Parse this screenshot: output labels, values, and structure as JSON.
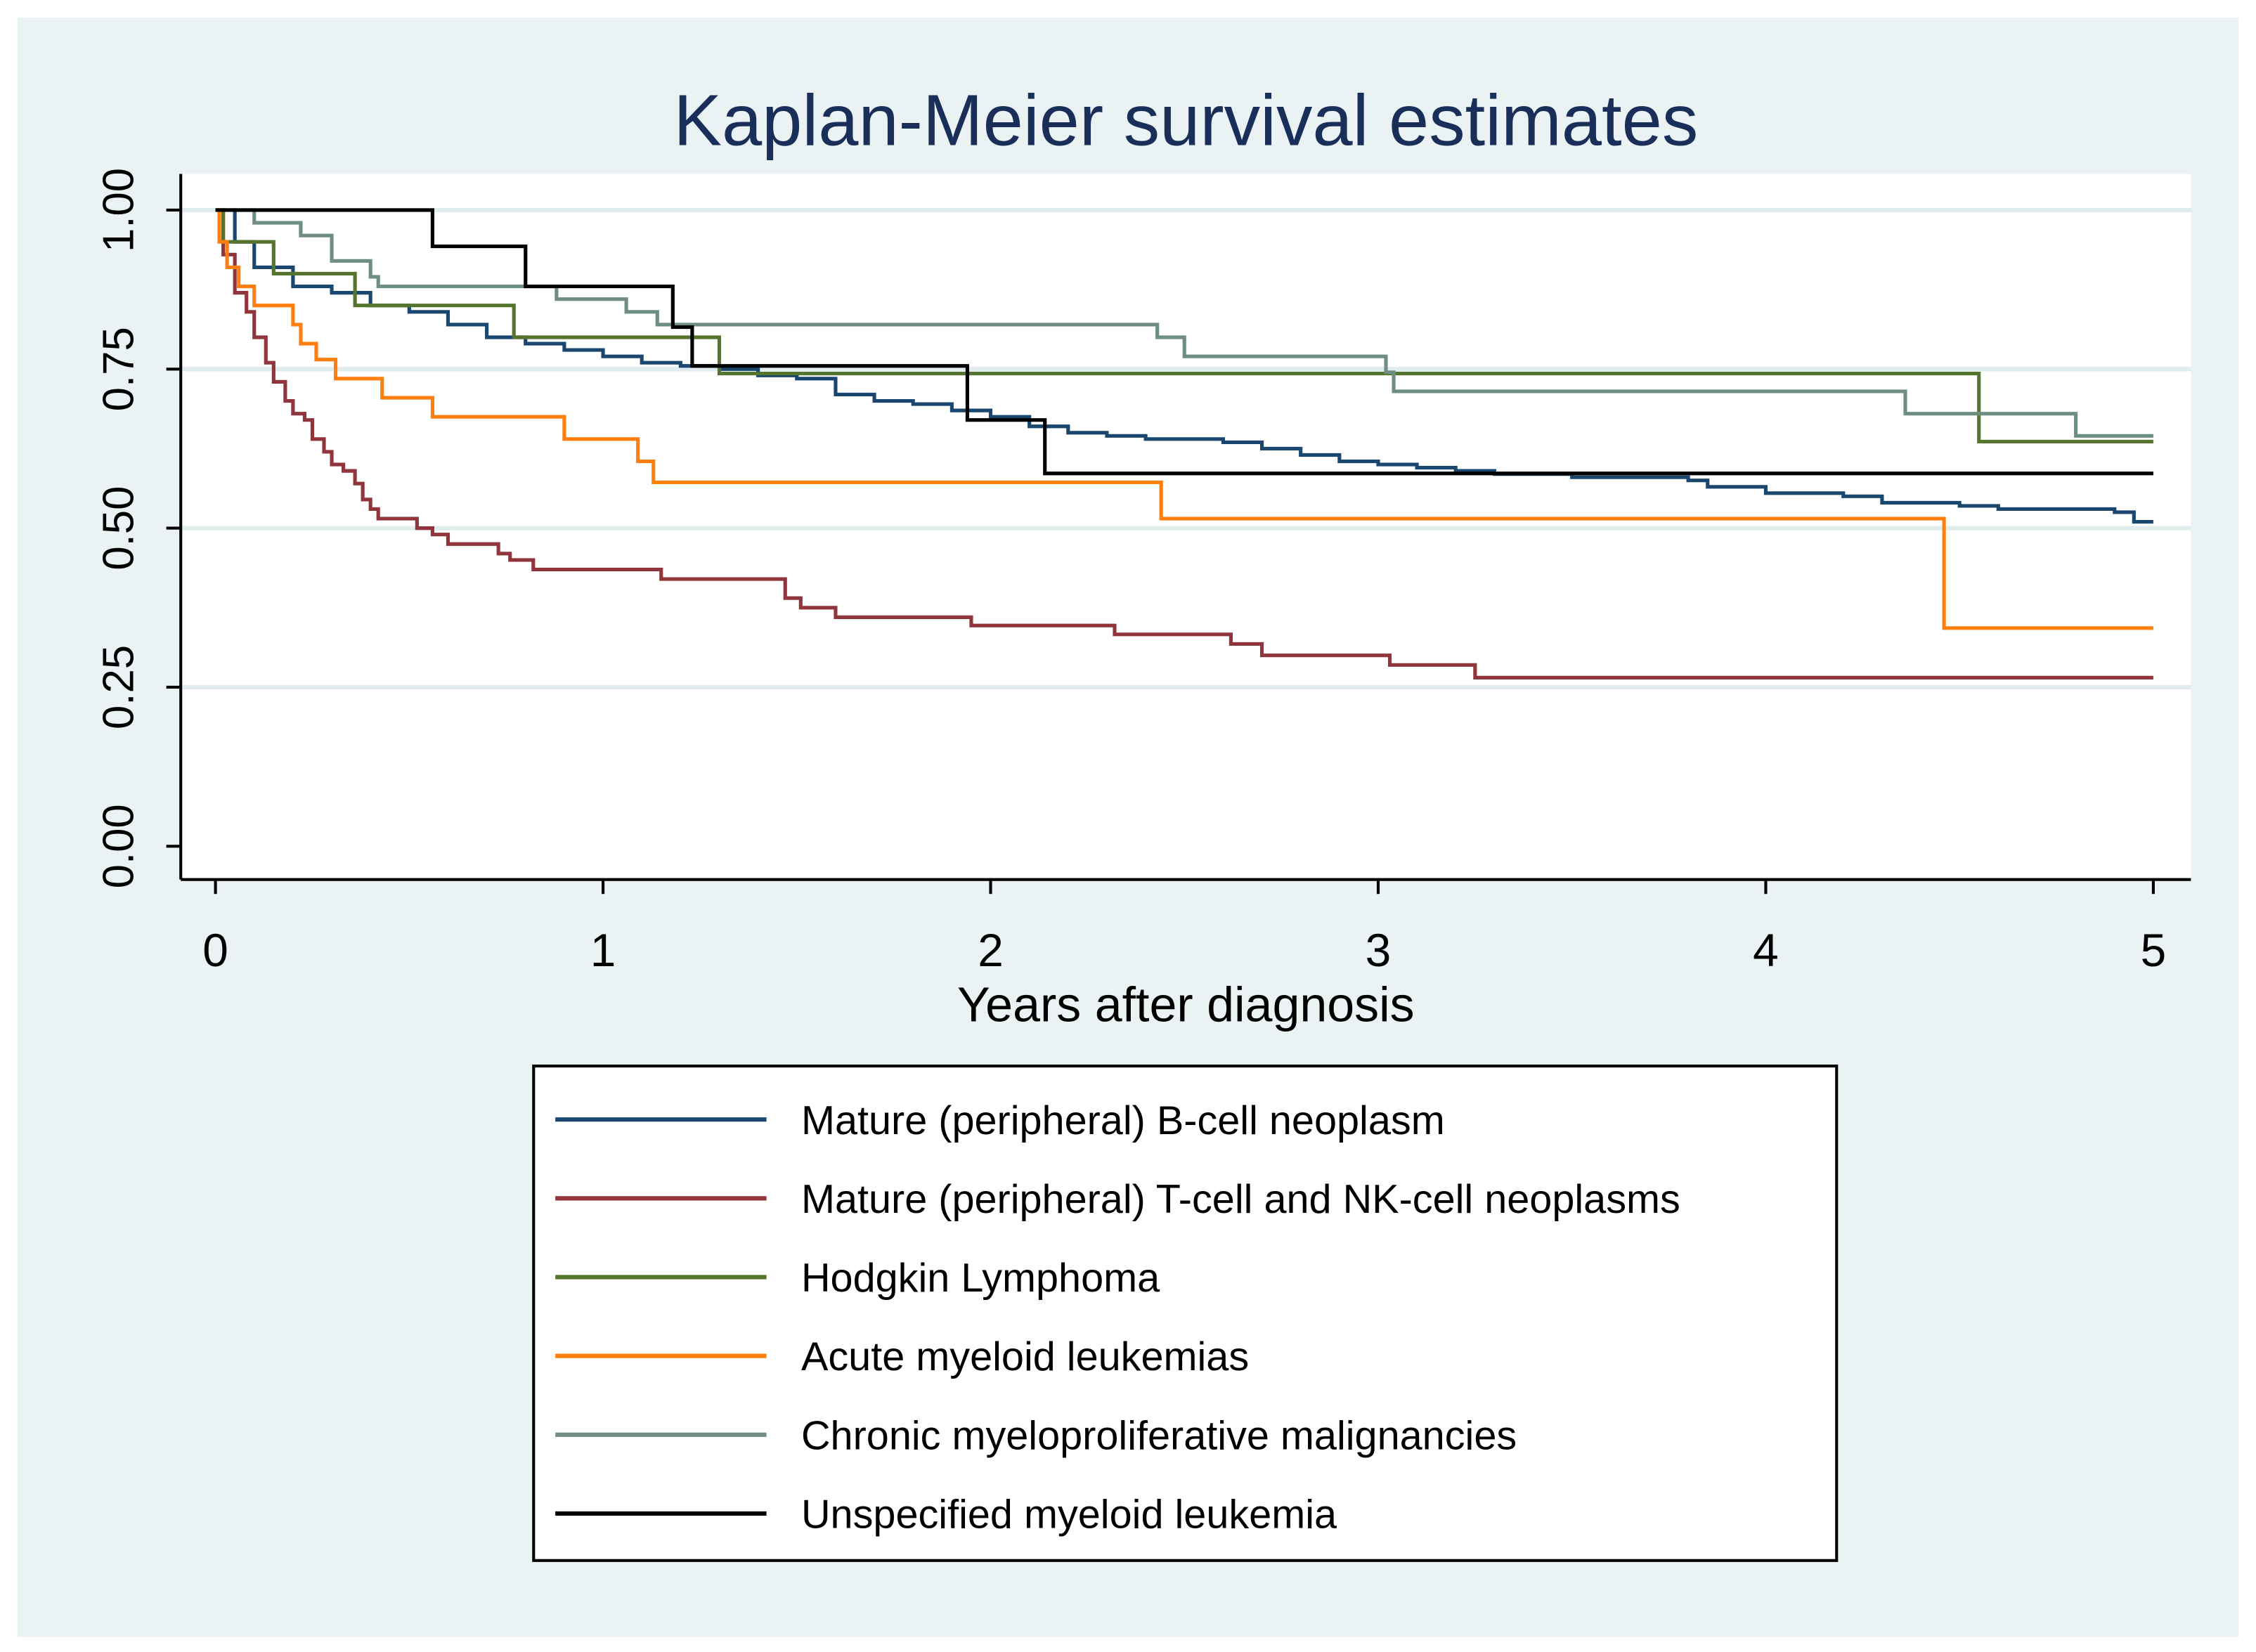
{
  "chart_data": {
    "type": "line",
    "step": true,
    "title": "Kaplan-Meier survival estimates",
    "xlabel": "Years after diagnosis",
    "ylabel": "",
    "xlim": [
      0,
      5
    ],
    "ylim": [
      0,
      1
    ],
    "xticks": [
      "0",
      "1",
      "2",
      "3",
      "4",
      "5"
    ],
    "xtick_values": [
      0,
      1,
      2,
      3,
      4,
      5
    ],
    "yticks": [
      "0.00",
      "0.25",
      "0.50",
      "0.75",
      "1.00"
    ],
    "ytick_values": [
      0,
      0.25,
      0.5,
      0.75,
      1.0
    ],
    "grid": "horizontal",
    "legend_position": "bottom",
    "series": [
      {
        "name": "Mature (peripheral) B-cell neoplasm",
        "color": "#1a476f",
        "x": [
          0,
          0.05,
          0.1,
          0.2,
          0.3,
          0.4,
          0.5,
          0.6,
          0.7,
          0.8,
          0.9,
          1.0,
          1.1,
          1.2,
          1.3,
          1.4,
          1.5,
          1.6,
          1.7,
          1.8,
          1.9,
          2.0,
          2.1,
          2.2,
          2.3,
          2.4,
          2.6,
          2.7,
          2.8,
          2.9,
          3.0,
          3.1,
          3.2,
          3.3,
          3.5,
          3.8,
          3.85,
          4.0,
          4.2,
          4.3,
          4.5,
          4.6,
          4.9,
          4.95,
          5.0
        ],
        "y": [
          1,
          0.95,
          0.91,
          0.88,
          0.87,
          0.85,
          0.84,
          0.82,
          0.8,
          0.79,
          0.78,
          0.77,
          0.76,
          0.755,
          0.75,
          0.74,
          0.735,
          0.71,
          0.7,
          0.695,
          0.685,
          0.675,
          0.66,
          0.65,
          0.645,
          0.64,
          0.635,
          0.625,
          0.615,
          0.605,
          0.6,
          0.595,
          0.59,
          0.585,
          0.58,
          0.575,
          0.565,
          0.555,
          0.55,
          0.54,
          0.535,
          0.53,
          0.525,
          0.51,
          0.51
        ]
      },
      {
        "name": "Mature (peripheral) T-cell and NK-cell neoplasms",
        "color": "#90353b",
        "x": [
          0,
          0.02,
          0.05,
          0.08,
          0.1,
          0.13,
          0.15,
          0.18,
          0.2,
          0.23,
          0.25,
          0.28,
          0.3,
          0.33,
          0.36,
          0.38,
          0.4,
          0.42,
          0.52,
          0.56,
          0.6,
          0.73,
          0.76,
          0.82,
          1.15,
          1.47,
          1.51,
          1.6,
          1.95,
          2.32,
          2.62,
          2.7,
          3.03,
          3.25,
          5.0
        ],
        "y": [
          1,
          0.93,
          0.87,
          0.84,
          0.8,
          0.76,
          0.73,
          0.7,
          0.68,
          0.67,
          0.64,
          0.62,
          0.6,
          0.59,
          0.57,
          0.545,
          0.53,
          0.515,
          0.5,
          0.49,
          0.475,
          0.46,
          0.45,
          0.435,
          0.42,
          0.39,
          0.375,
          0.36,
          0.347,
          0.333,
          0.318,
          0.3,
          0.285,
          0.265,
          0.265
        ]
      },
      {
        "name": "Hodgkin Lymphoma",
        "color": "#55752f",
        "x": [
          0,
          0.02,
          0.15,
          0.36,
          0.77,
          1.3,
          4.55,
          5.0
        ],
        "y": [
          1,
          0.95,
          0.9,
          0.85,
          0.8,
          0.743,
          0.636,
          0.636
        ]
      },
      {
        "name": "Acute myeloid leukemias",
        "color": "#ff7f0e",
        "x": [
          0,
          0.01,
          0.03,
          0.06,
          0.1,
          0.2,
          0.22,
          0.26,
          0.31,
          0.43,
          0.56,
          0.9,
          1.09,
          1.13,
          2.44,
          4.46,
          5.0
        ],
        "y": [
          1,
          0.95,
          0.91,
          0.88,
          0.85,
          0.82,
          0.79,
          0.765,
          0.735,
          0.705,
          0.675,
          0.64,
          0.605,
          0.572,
          0.515,
          0.343,
          0.343
        ]
      },
      {
        "name": "Chronic myeloproliferative malignancies",
        "color": "#6e8e84",
        "x": [
          0,
          0.1,
          0.22,
          0.3,
          0.4,
          0.42,
          0.88,
          1.06,
          1.14,
          2.43,
          2.5,
          3.02,
          3.04,
          4.36,
          4.8,
          5.0
        ],
        "y": [
          1,
          0.98,
          0.96,
          0.92,
          0.895,
          0.88,
          0.86,
          0.84,
          0.82,
          0.8,
          0.77,
          0.745,
          0.715,
          0.68,
          0.645,
          0.645
        ]
      },
      {
        "name": "Unspecified myeloid leukemia",
        "color": "#000000",
        "x": [
          0,
          0.56,
          0.8,
          1.18,
          1.23,
          1.94,
          2.14,
          5.0
        ],
        "y": [
          1,
          0.943,
          0.88,
          0.816,
          0.755,
          0.67,
          0.586,
          0.586
        ]
      }
    ]
  }
}
